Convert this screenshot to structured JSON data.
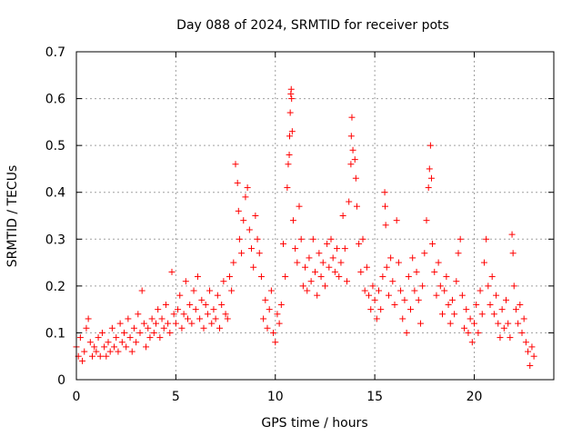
{
  "chart_data": {
    "type": "scatter",
    "title": "Day 088 of 2024, SRMTID for receiver pots",
    "xlabel": "GPS time / hours",
    "ylabel": "SRMTID / TECUs",
    "xlim": [
      0,
      24
    ],
    "ylim": [
      0,
      0.7
    ],
    "xticks": [
      0,
      5,
      10,
      15,
      20
    ],
    "yticks": [
      0,
      0.1,
      0.2,
      0.3,
      0.4,
      0.5,
      0.6,
      0.7
    ],
    "grid": true,
    "marker": "plus",
    "color": "#ff0000",
    "series": [
      {
        "name": "SRMTID",
        "points": [
          [
            0.0,
            0.07
          ],
          [
            0.1,
            0.05
          ],
          [
            0.2,
            0.09
          ],
          [
            0.3,
            0.04
          ],
          [
            0.4,
            0.06
          ],
          [
            0.5,
            0.11
          ],
          [
            0.6,
            0.13
          ],
          [
            0.7,
            0.08
          ],
          [
            0.8,
            0.05
          ],
          [
            0.9,
            0.07
          ],
          [
            1.0,
            0.06
          ],
          [
            1.1,
            0.09
          ],
          [
            1.2,
            0.05
          ],
          [
            1.3,
            0.1
          ],
          [
            1.4,
            0.07
          ],
          [
            1.5,
            0.05
          ],
          [
            1.6,
            0.08
          ],
          [
            1.7,
            0.06
          ],
          [
            1.8,
            0.11
          ],
          [
            1.9,
            0.07
          ],
          [
            2.0,
            0.09
          ],
          [
            2.1,
            0.06
          ],
          [
            2.2,
            0.12
          ],
          [
            2.3,
            0.08
          ],
          [
            2.4,
            0.1
          ],
          [
            2.5,
            0.07
          ],
          [
            2.6,
            0.13
          ],
          [
            2.7,
            0.09
          ],
          [
            2.8,
            0.06
          ],
          [
            2.9,
            0.11
          ],
          [
            3.0,
            0.08
          ],
          [
            3.1,
            0.14
          ],
          [
            3.2,
            0.1
          ],
          [
            3.3,
            0.19
          ],
          [
            3.4,
            0.12
          ],
          [
            3.5,
            0.07
          ],
          [
            3.6,
            0.11
          ],
          [
            3.7,
            0.09
          ],
          [
            3.8,
            0.13
          ],
          [
            3.9,
            0.1
          ],
          [
            4.0,
            0.12
          ],
          [
            4.1,
            0.15
          ],
          [
            4.2,
            0.09
          ],
          [
            4.3,
            0.13
          ],
          [
            4.4,
            0.11
          ],
          [
            4.5,
            0.16
          ],
          [
            4.6,
            0.12
          ],
          [
            4.7,
            0.1
          ],
          [
            4.8,
            0.23
          ],
          [
            4.9,
            0.14
          ],
          [
            5.0,
            0.12
          ],
          [
            5.1,
            0.15
          ],
          [
            5.2,
            0.18
          ],
          [
            5.3,
            0.11
          ],
          [
            5.4,
            0.14
          ],
          [
            5.5,
            0.21
          ],
          [
            5.6,
            0.13
          ],
          [
            5.7,
            0.16
          ],
          [
            5.8,
            0.12
          ],
          [
            5.9,
            0.19
          ],
          [
            6.0,
            0.15
          ],
          [
            6.1,
            0.22
          ],
          [
            6.2,
            0.13
          ],
          [
            6.3,
            0.17
          ],
          [
            6.4,
            0.11
          ],
          [
            6.5,
            0.16
          ],
          [
            6.6,
            0.14
          ],
          [
            6.7,
            0.19
          ],
          [
            6.8,
            0.12
          ],
          [
            6.9,
            0.15
          ],
          [
            7.0,
            0.13
          ],
          [
            7.1,
            0.18
          ],
          [
            7.2,
            0.11
          ],
          [
            7.3,
            0.16
          ],
          [
            7.4,
            0.21
          ],
          [
            7.5,
            0.14
          ],
          [
            7.6,
            0.13
          ],
          [
            7.7,
            0.22
          ],
          [
            7.8,
            0.19
          ],
          [
            7.9,
            0.25
          ],
          [
            8.0,
            0.46
          ],
          [
            8.1,
            0.42
          ],
          [
            8.15,
            0.36
          ],
          [
            8.2,
            0.3
          ],
          [
            8.3,
            0.27
          ],
          [
            8.4,
            0.34
          ],
          [
            8.5,
            0.39
          ],
          [
            8.6,
            0.41
          ],
          [
            8.7,
            0.32
          ],
          [
            8.8,
            0.28
          ],
          [
            8.9,
            0.24
          ],
          [
            9.0,
            0.35
          ],
          [
            9.1,
            0.3
          ],
          [
            9.2,
            0.27
          ],
          [
            9.3,
            0.22
          ],
          [
            9.4,
            0.13
          ],
          [
            9.5,
            0.17
          ],
          [
            9.6,
            0.11
          ],
          [
            9.7,
            0.15
          ],
          [
            9.8,
            0.19
          ],
          [
            9.9,
            0.1
          ],
          [
            10.0,
            0.08
          ],
          [
            10.1,
            0.14
          ],
          [
            10.2,
            0.12
          ],
          [
            10.3,
            0.16
          ],
          [
            10.4,
            0.29
          ],
          [
            10.5,
            0.22
          ],
          [
            10.6,
            0.41
          ],
          [
            10.65,
            0.46
          ],
          [
            10.7,
            0.48
          ],
          [
            10.72,
            0.52
          ],
          [
            10.75,
            0.57
          ],
          [
            10.78,
            0.61
          ],
          [
            10.8,
            0.62
          ],
          [
            10.82,
            0.6
          ],
          [
            10.85,
            0.53
          ],
          [
            10.9,
            0.34
          ],
          [
            11.0,
            0.28
          ],
          [
            11.1,
            0.25
          ],
          [
            11.2,
            0.37
          ],
          [
            11.3,
            0.3
          ],
          [
            11.4,
            0.2
          ],
          [
            11.5,
            0.24
          ],
          [
            11.6,
            0.19
          ],
          [
            11.7,
            0.26
          ],
          [
            11.8,
            0.21
          ],
          [
            11.9,
            0.3
          ],
          [
            12.0,
            0.23
          ],
          [
            12.1,
            0.18
          ],
          [
            12.2,
            0.27
          ],
          [
            12.3,
            0.22
          ],
          [
            12.4,
            0.25
          ],
          [
            12.5,
            0.2
          ],
          [
            12.6,
            0.29
          ],
          [
            12.7,
            0.24
          ],
          [
            12.8,
            0.3
          ],
          [
            12.9,
            0.26
          ],
          [
            13.0,
            0.23
          ],
          [
            13.1,
            0.28
          ],
          [
            13.2,
            0.22
          ],
          [
            13.3,
            0.25
          ],
          [
            13.4,
            0.35
          ],
          [
            13.5,
            0.28
          ],
          [
            13.6,
            0.21
          ],
          [
            13.7,
            0.38
          ],
          [
            13.8,
            0.46
          ],
          [
            13.82,
            0.52
          ],
          [
            13.85,
            0.56
          ],
          [
            13.9,
            0.49
          ],
          [
            14.0,
            0.47
          ],
          [
            14.05,
            0.43
          ],
          [
            14.1,
            0.37
          ],
          [
            14.2,
            0.29
          ],
          [
            14.3,
            0.23
          ],
          [
            14.4,
            0.3
          ],
          [
            14.5,
            0.19
          ],
          [
            14.6,
            0.24
          ],
          [
            14.7,
            0.18
          ],
          [
            14.8,
            0.15
          ],
          [
            14.9,
            0.2
          ],
          [
            15.0,
            0.17
          ],
          [
            15.1,
            0.13
          ],
          [
            15.2,
            0.19
          ],
          [
            15.3,
            0.15
          ],
          [
            15.4,
            0.22
          ],
          [
            15.5,
            0.4
          ],
          [
            15.52,
            0.37
          ],
          [
            15.55,
            0.33
          ],
          [
            15.6,
            0.24
          ],
          [
            15.7,
            0.18
          ],
          [
            15.8,
            0.26
          ],
          [
            15.9,
            0.21
          ],
          [
            16.0,
            0.16
          ],
          [
            16.1,
            0.34
          ],
          [
            16.2,
            0.25
          ],
          [
            16.3,
            0.19
          ],
          [
            16.4,
            0.13
          ],
          [
            16.5,
            0.17
          ],
          [
            16.6,
            0.1
          ],
          [
            16.7,
            0.22
          ],
          [
            16.8,
            0.15
          ],
          [
            16.9,
            0.26
          ],
          [
            17.0,
            0.19
          ],
          [
            17.1,
            0.23
          ],
          [
            17.2,
            0.17
          ],
          [
            17.3,
            0.12
          ],
          [
            17.4,
            0.2
          ],
          [
            17.5,
            0.27
          ],
          [
            17.6,
            0.34
          ],
          [
            17.7,
            0.41
          ],
          [
            17.75,
            0.45
          ],
          [
            17.8,
            0.5
          ],
          [
            17.85,
            0.43
          ],
          [
            17.9,
            0.29
          ],
          [
            18.0,
            0.23
          ],
          [
            18.1,
            0.18
          ],
          [
            18.2,
            0.25
          ],
          [
            18.3,
            0.2
          ],
          [
            18.4,
            0.14
          ],
          [
            18.5,
            0.19
          ],
          [
            18.6,
            0.22
          ],
          [
            18.7,
            0.16
          ],
          [
            18.8,
            0.12
          ],
          [
            18.9,
            0.17
          ],
          [
            19.0,
            0.14
          ],
          [
            19.1,
            0.21
          ],
          [
            19.2,
            0.27
          ],
          [
            19.3,
            0.3
          ],
          [
            19.4,
            0.18
          ],
          [
            19.5,
            0.11
          ],
          [
            19.6,
            0.15
          ],
          [
            19.7,
            0.1
          ],
          [
            19.8,
            0.13
          ],
          [
            19.9,
            0.08
          ],
          [
            20.0,
            0.12
          ],
          [
            20.1,
            0.16
          ],
          [
            20.2,
            0.1
          ],
          [
            20.3,
            0.19
          ],
          [
            20.4,
            0.14
          ],
          [
            20.5,
            0.25
          ],
          [
            20.6,
            0.3
          ],
          [
            20.7,
            0.2
          ],
          [
            20.8,
            0.16
          ],
          [
            20.9,
            0.22
          ],
          [
            21.0,
            0.14
          ],
          [
            21.1,
            0.18
          ],
          [
            21.2,
            0.12
          ],
          [
            21.3,
            0.09
          ],
          [
            21.4,
            0.15
          ],
          [
            21.5,
            0.11
          ],
          [
            21.6,
            0.17
          ],
          [
            21.7,
            0.12
          ],
          [
            21.8,
            0.09
          ],
          [
            21.9,
            0.31
          ],
          [
            21.95,
            0.27
          ],
          [
            22.0,
            0.2
          ],
          [
            22.1,
            0.15
          ],
          [
            22.2,
            0.12
          ],
          [
            22.3,
            0.16
          ],
          [
            22.4,
            0.1
          ],
          [
            22.5,
            0.13
          ],
          [
            22.6,
            0.08
          ],
          [
            22.7,
            0.06
          ],
          [
            22.8,
            0.03
          ],
          [
            22.9,
            0.07
          ],
          [
            23.0,
            0.05
          ]
        ]
      }
    ]
  }
}
